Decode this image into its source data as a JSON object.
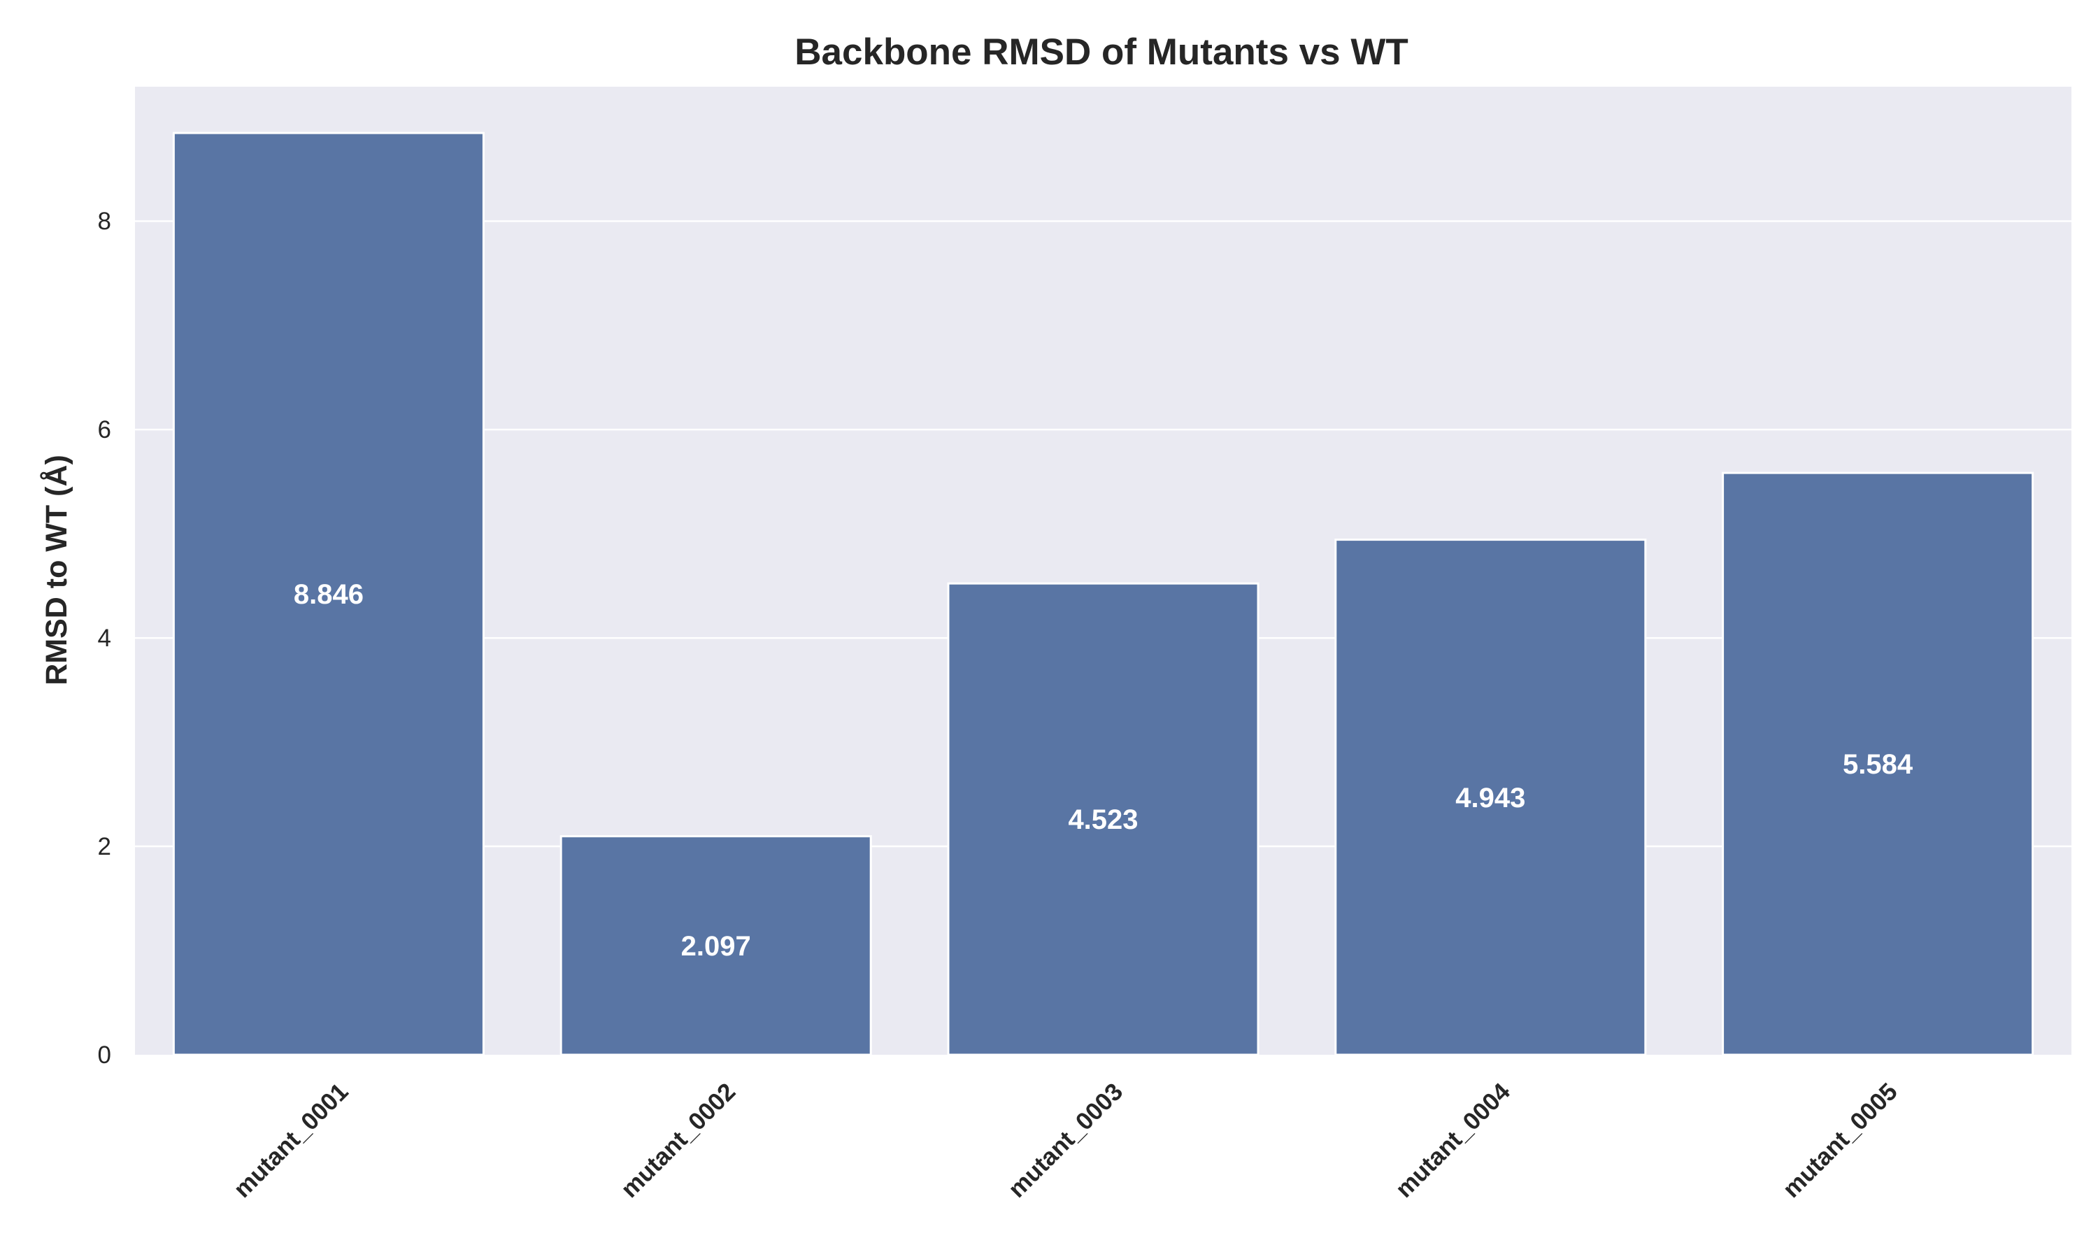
{
  "chart_data": {
    "type": "bar",
    "title": "Backbone RMSD of Mutants vs WT",
    "xlabel": "",
    "ylabel": "RMSD to WT (Å)",
    "categories": [
      "mutant_0001",
      "mutant_0002",
      "mutant_0003",
      "mutant_0004",
      "mutant_0005"
    ],
    "values": [
      8.846,
      2.097,
      4.523,
      4.943,
      5.584
    ],
    "data_labels": [
      "8.846",
      "2.097",
      "4.523",
      "4.943",
      "5.584"
    ],
    "ylim": [
      0,
      9.29
    ],
    "yticks": [
      0,
      2,
      4,
      6,
      8
    ],
    "ytick_labels": [
      "0",
      "2",
      "4",
      "6",
      "8"
    ],
    "grid": true,
    "legend": "none",
    "colors": {
      "bar": "#5975a4",
      "plot_background": "#eaeaf2",
      "grid": "#ffffff",
      "text": "#262626",
      "data_label": "#ffffff"
    }
  }
}
